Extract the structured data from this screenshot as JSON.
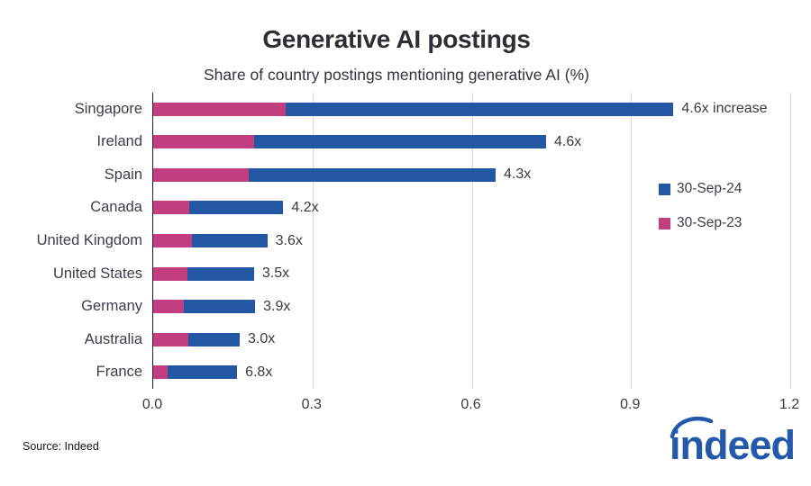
{
  "header": {
    "title": "Generative AI postings",
    "subtitle": "Share of country postings mentioning generative AI (%)"
  },
  "chart_data": {
    "type": "bar",
    "orientation": "horizontal",
    "title": "Generative AI postings",
    "subtitle": "Share of country postings mentioning generative AI (%)",
    "categories": [
      "Singapore",
      "Ireland",
      "Spain",
      "Canada",
      "United Kingdom",
      "United States",
      "Germany",
      "Australia",
      "France"
    ],
    "series": [
      {
        "name": "30-Sep-24",
        "color": "#2357A4",
        "values": [
          0.98,
          0.74,
          0.645,
          0.245,
          0.215,
          0.19,
          0.192,
          0.163,
          0.158
        ]
      },
      {
        "name": "30-Sep-23",
        "color": "#C23E7E",
        "values": [
          0.25,
          0.19,
          0.18,
          0.068,
          0.073,
          0.065,
          0.058,
          0.066,
          0.027
        ]
      }
    ],
    "bar_labels": [
      "4.6x increase",
      "4.6x",
      "4.3x",
      "4.2x",
      "3.6x",
      "3.5x",
      "3.9x",
      "3.0x",
      "6.8x"
    ],
    "xlim": [
      0,
      1.2
    ],
    "xticks": [
      {
        "value": 0.0,
        "label": "0.0"
      },
      {
        "value": 0.3,
        "label": "0.3"
      },
      {
        "value": 0.6,
        "label": "0.6"
      },
      {
        "value": 0.9,
        "label": "0.9"
      },
      {
        "value": 1.2,
        "label": "1.2"
      }
    ],
    "gridlines": [
      0.3,
      0.6,
      0.9,
      1.2
    ],
    "legend": {
      "position": "inside-right",
      "entries": [
        "30-Sep-24",
        "30-Sep-23"
      ]
    },
    "grid": "vertical-only"
  },
  "footer": {
    "source": "Source: Indeed",
    "logo_text": "indeed"
  },
  "colors": {
    "bar_blue": "#2357A4",
    "bar_pink": "#C23E7E",
    "logo_blue": "#2458A8",
    "gridline": "#d8d8d8",
    "axis": "#222222",
    "text": "#3a3a3a"
  }
}
